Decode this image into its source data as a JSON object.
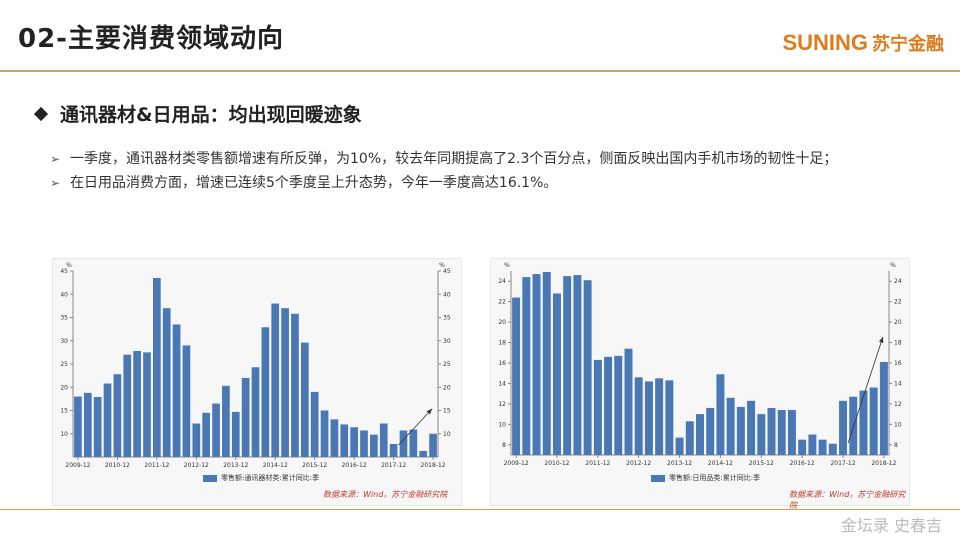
{
  "header": {
    "title": "02-主要消费领域动向",
    "logo_en": "SUNING",
    "logo_cn": "苏宁金融"
  },
  "section": {
    "title": "通讯器材&日用品：均出现回暖迹象"
  },
  "bullets": [
    "一季度，通讯器材类零售额增速有所反弹，为10%，较去年同期提高了2.3个百分点，侧面反映出国内手机市场的韧性十足；",
    "在日用品消费方面，增速已连续5个季度呈上升态势，今年一季度高达16.1%。"
  ],
  "footer": {
    "signature": "金坛录 史春吉"
  },
  "chart_data": [
    {
      "type": "bar",
      "legend": "零售额:通讯器材类:累计同比:季",
      "source": "数据来源：Wind，苏宁金融研究院",
      "unit_left": "%",
      "unit_right": "%",
      "ylim": [
        5,
        45
      ],
      "yticks": [
        10,
        15,
        20,
        25,
        30,
        35,
        40,
        45
      ],
      "xtick_labels": [
        "2009-12",
        "2010-12",
        "2011-12",
        "2012-12",
        "2013-12",
        "2014-12",
        "2015-12",
        "2016-12",
        "2017-12",
        "2018-12"
      ],
      "values": [
        18,
        18.8,
        17.9,
        20.8,
        22.8,
        27,
        27.8,
        27.5,
        43.5,
        37,
        33.5,
        29,
        12.2,
        14.5,
        16.5,
        20.3,
        14.7,
        22,
        24.3,
        32.9,
        38,
        37,
        35.8,
        29.6,
        19,
        15,
        13.1,
        12,
        11.4,
        10.7,
        9.8,
        12.2,
        7.8,
        10.7,
        10.9,
        6.3,
        10
      ],
      "color": "#4a78b4",
      "trend_arrow": true
    },
    {
      "type": "bar",
      "legend": "零售额:日用品类:累计同比:季",
      "source": "数据来源：Wind，苏宁金融研究院",
      "unit_left": "%",
      "unit_right": "%",
      "ylim": [
        7,
        25
      ],
      "yticks": [
        8,
        10,
        12,
        14,
        16,
        18,
        20,
        22,
        24
      ],
      "xtick_labels": [
        "2009-12",
        "2010-12",
        "2011-12",
        "2012-12",
        "2013-12",
        "2014-12",
        "2015-12",
        "2016-12",
        "2017-12",
        "2018-12"
      ],
      "values": [
        22.4,
        24.4,
        24.7,
        24.9,
        22.8,
        24.5,
        24.6,
        24.1,
        16.3,
        16.6,
        16.7,
        17.4,
        14.6,
        14.2,
        14.5,
        14.3,
        8.7,
        10.3,
        11.0,
        11.6,
        14.9,
        12.6,
        11.7,
        12.3,
        11,
        11.6,
        11.4,
        11.4,
        8.5,
        9,
        8.5,
        8.1,
        12.3,
        12.7,
        13.3,
        13.6,
        16.1
      ],
      "color": "#4a78b4",
      "trend_arrow": true
    }
  ]
}
